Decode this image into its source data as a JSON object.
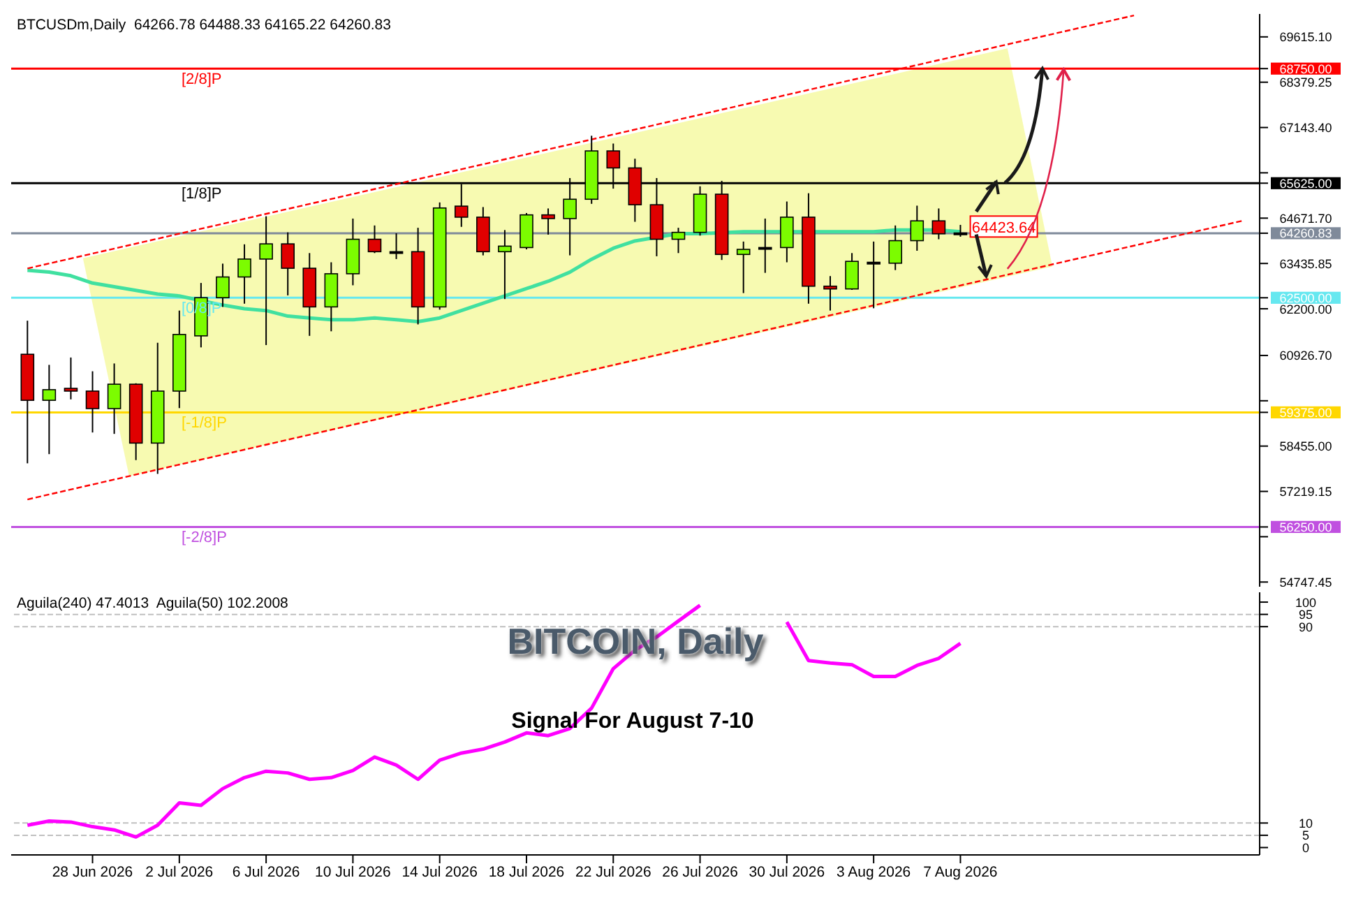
{
  "chart_data": [
    {
      "type": "candlestick",
      "title": "BTCUSDm,Daily  64266.78 64488.33 64165.22 64260.83",
      "x": [
        "2026-06-25",
        "2026-06-26",
        "2026-06-27",
        "2026-06-28",
        "2026-06-29",
        "2026-06-30",
        "2026-07-01",
        "2026-07-02",
        "2026-07-03",
        "2026-07-04",
        "2026-07-05",
        "2026-07-06",
        "2026-07-07",
        "2026-07-08",
        "2026-07-09",
        "2026-07-10",
        "2026-07-11",
        "2026-07-12",
        "2026-07-13",
        "2026-07-14",
        "2026-07-15",
        "2026-07-16",
        "2026-07-17",
        "2026-07-18",
        "2026-07-19",
        "2026-07-20",
        "2026-07-21",
        "2026-07-22",
        "2026-07-23",
        "2026-07-24",
        "2026-07-25",
        "2026-07-26",
        "2026-07-27",
        "2026-07-28",
        "2026-07-29",
        "2026-07-30",
        "2026-07-31",
        "2026-08-01",
        "2026-08-02",
        "2026-08-03",
        "2026-08-04",
        "2026-08-05",
        "2026-08-06",
        "2026-08-07"
      ],
      "ohlc": [
        [
          60959,
          61875,
          57985,
          59704
        ],
        [
          59704,
          60670,
          58236,
          59993
        ],
        [
          60030,
          60871,
          59729,
          59955
        ],
        [
          59955,
          60495,
          58826,
          59478
        ],
        [
          59478,
          60708,
          58788,
          60143
        ],
        [
          60143,
          60168,
          58073,
          58537
        ],
        [
          58537,
          61273,
          57697,
          59955
        ],
        [
          59955,
          62151,
          59491,
          61499
        ],
        [
          61461,
          62904,
          61147,
          62502
        ],
        [
          62502,
          63431,
          62251,
          63067
        ],
        [
          63067,
          63958,
          62339,
          63556
        ],
        [
          63556,
          64723,
          61210,
          63970
        ],
        [
          63970,
          64284,
          62565,
          63305
        ],
        [
          63305,
          63719,
          61461,
          62251
        ],
        [
          62251,
          63468,
          61586,
          63155
        ],
        [
          63155,
          64660,
          62841,
          64096
        ],
        [
          64096,
          64472,
          63719,
          63757
        ],
        [
          63757,
          64259,
          63556,
          63757
        ],
        [
          63757,
          64409,
          61774,
          62251
        ],
        [
          62251,
          65100,
          62176,
          64949
        ],
        [
          64999,
          65601,
          64434,
          64698
        ],
        [
          64698,
          64974,
          63657,
          63757
        ],
        [
          63757,
          64347,
          62465,
          63908
        ],
        [
          63870,
          64811,
          63820,
          64761
        ],
        [
          64761,
          64936,
          64222,
          64660
        ],
        [
          64660,
          65765,
          63657,
          65187
        ],
        [
          65187,
          66919,
          65062,
          66505
        ],
        [
          66505,
          66706,
          65476,
          66041
        ],
        [
          66041,
          66292,
          64572,
          65037
        ],
        [
          65037,
          65765,
          63632,
          64096
        ],
        [
          64096,
          64409,
          63719,
          64284
        ],
        [
          64284,
          65539,
          64196,
          65325
        ],
        [
          65325,
          65689,
          63531,
          63682
        ],
        [
          63682,
          64033,
          62628,
          63820
        ],
        [
          63870,
          64660,
          63180,
          63870
        ],
        [
          63870,
          65125,
          63468,
          64698
        ],
        [
          64698,
          65351,
          62339,
          62816
        ],
        [
          62816,
          63092,
          62151,
          62741
        ],
        [
          62741,
          63719,
          62716,
          63493
        ],
        [
          63468,
          64033,
          62214,
          63468
        ],
        [
          63443,
          64472,
          63255,
          64058
        ],
        [
          64058,
          65012,
          63782,
          64598
        ],
        [
          64598,
          64936,
          64096,
          64246
        ],
        [
          64266.78,
          64488.33,
          64165.22,
          64260.83
        ]
      ],
      "colors": [
        "#e00000",
        "#7cfc00",
        "#e00000",
        "#e00000",
        "#7cfc00",
        "#e00000",
        "#7cfc00",
        "#7cfc00",
        "#7cfc00",
        "#7cfc00",
        "#7cfc00",
        "#7cfc00",
        "#e00000",
        "#e00000",
        "#7cfc00",
        "#7cfc00",
        "#e00000",
        "#000000",
        "#e00000",
        "#7cfc00",
        "#e00000",
        "#e00000",
        "#7cfc00",
        "#7cfc00",
        "#e00000",
        "#7cfc00",
        "#7cfc00",
        "#e00000",
        "#e00000",
        "#e00000",
        "#7cfc00",
        "#7cfc00",
        "#e00000",
        "#7cfc00",
        "#000000",
        "#7cfc00",
        "#e00000",
        "#e00000",
        "#7cfc00",
        "#000000",
        "#7cfc00",
        "#7cfc00",
        "#e00000",
        "#000000"
      ],
      "series": [
        {
          "type": "line",
          "color": "#40e0a0",
          "values": [
            63250,
            63200,
            63100,
            62900,
            62800,
            62700,
            62600,
            62550,
            null,
            62300,
            62200,
            62150,
            62000,
            61950,
            61900,
            61900,
            61950,
            61900,
            61850,
            61950,
            62150,
            62350,
            62550,
            62750,
            62950,
            63200,
            63550,
            63850,
            64050,
            null,
            64250,
            64250,
            null,
            64300,
            64300,
            null,
            null,
            64300,
            64300,
            64300,
            64350,
            null,
            64350,
            64300
          ]
        },
        {
          "type": "line",
          "color": "#ff0000",
          "line_style": "dashed",
          "x": [
            "2026-06-25",
            "2026-08-15"
          ],
          "values": [
            63300,
            70200
          ]
        },
        {
          "type": "line",
          "color": "#ff0000",
          "line_style": "dashed",
          "x": [
            "2026-06-25",
            "2026-08-20"
          ],
          "values": [
            57000,
            64600
          ]
        }
      ],
      "xlim": [
        "2026-06-24T06:00",
        "2026-08-20T19:00"
      ],
      "ylim": [
        54620,
        70240
      ],
      "yticks": [
        {
          "value": 54747.45,
          "label": "54747.45"
        },
        {
          "value": 55983.3,
          "label": null
        },
        {
          "value": 57219.15,
          "label": "57219.15"
        },
        {
          "value": 58455,
          "label": "58455.00"
        },
        {
          "value": 59690.85,
          "label": null
        },
        {
          "value": 60926.7,
          "label": "60926.70"
        },
        {
          "value": 62200,
          "label": "62200.00"
        },
        {
          "value": 63435.85,
          "label": "63435.85"
        },
        {
          "value": 64671.7,
          "label": "64671.70"
        },
        {
          "value": 65907.55,
          "label": null
        },
        {
          "value": 67143.4,
          "label": "67143.40"
        },
        {
          "value": 68379.25,
          "label": "68379.25"
        },
        {
          "value": 69615.1,
          "label": "69615.10"
        },
        {
          "value": 68750,
          "label": "68750.00"
        },
        {
          "value": 65625,
          "label": "65625.00"
        },
        {
          "value": 64260.83,
          "label": "64260.83"
        },
        {
          "value": 62500,
          "label": "62500.00"
        },
        {
          "value": 59375,
          "label": "59375.00"
        },
        {
          "value": 56250,
          "label": "56250.00"
        }
      ],
      "tick_labels": "y",
      "ref_lines": [
        {
          "axis": "y",
          "value": 68750,
          "label": "[2/8]P",
          "color": "#ff0000"
        },
        {
          "axis": "y",
          "value": 65625,
          "label": "[1/8]P",
          "color": "#000000"
        },
        {
          "axis": "y",
          "value": 64260.83,
          "label": null,
          "color": "#7f8a9a"
        },
        {
          "axis": "y",
          "value": 62500,
          "label": "[0/8]P",
          "color": "#66e8f0"
        },
        {
          "axis": "y",
          "value": 59375,
          "label": "[-1/8]P",
          "color": "#ffd700"
        },
        {
          "axis": "y",
          "value": 56250,
          "label": "[-2/8]P",
          "color": "#c050e0"
        }
      ],
      "annotations": [
        {
          "text": "64423.64",
          "x": "2026-08-09",
          "y": 64423.64
        }
      ]
    },
    {
      "type": "line",
      "title": "Aguila(240) 47.4013  Aguila(50) 102.2008",
      "x": [
        "2026-06-25",
        "2026-06-26",
        "2026-06-27",
        "2026-06-28",
        "2026-06-29",
        "2026-06-30",
        "2026-07-01",
        "2026-07-02",
        "2026-07-03",
        "2026-07-04",
        "2026-07-05",
        "2026-07-06",
        "2026-07-07",
        "2026-07-08",
        "2026-07-09",
        "2026-07-10",
        "2026-07-11",
        "2026-07-12",
        "2026-07-13",
        "2026-07-14",
        "2026-07-15",
        "2026-07-16",
        "2026-07-17",
        "2026-07-18",
        "2026-07-19",
        "2026-07-20",
        "2026-07-21",
        "2026-07-22",
        "2026-07-23",
        "2026-07-24",
        "2026-07-25",
        "2026-07-26",
        "2026-07-27",
        "2026-07-28",
        "2026-07-29",
        "2026-07-30",
        "2026-07-31",
        "2026-08-01",
        "2026-08-02",
        "2026-08-03",
        "2026-08-04",
        "2026-08-05",
        "2026-08-06",
        "2026-08-07"
      ],
      "series": [
        {
          "color": "#ff00ff",
          "values": [
            9.1,
            10.8,
            10.4,
            8.5,
            7.2,
            4.3,
            9.1,
            18.2,
            17.2,
            24.0,
            28.5,
            31.1,
            30.4,
            27.8,
            28.5,
            31.4,
            36.9,
            33.6,
            27.8,
            35.6,
            38.5,
            40.1,
            43.0,
            46.7,
            45.6,
            48.5,
            56.8,
            72.9,
            80.4,
            85.8,
            92.3,
            98.7,
            null,
            null,
            null,
            91.9,
            76.2,
            75.2,
            74.5,
            69.7,
            69.7,
            74.2,
            77.1,
            83.2
          ]
        }
      ],
      "xlim": [
        "2026-06-24T06:00",
        "2026-08-20T19:00"
      ],
      "xticks": [
        {
          "value": "2026-06-28",
          "label": "28 Jun 2026"
        },
        {
          "value": "2026-07-02",
          "label": "2 Jul 2026"
        },
        {
          "value": "2026-07-06",
          "label": "6 Jul 2026"
        },
        {
          "value": "2026-07-10",
          "label": "10 Jul 2026"
        },
        {
          "value": "2026-07-14",
          "label": "14 Jul 2026"
        },
        {
          "value": "2026-07-18",
          "label": "18 Jul 2026"
        },
        {
          "value": "2026-07-22",
          "label": "22 Jul 2026"
        },
        {
          "value": "2026-07-26",
          "label": "26 Jul 2026"
        },
        {
          "value": "2026-07-30",
          "label": "30 Jul 2026"
        },
        {
          "value": "2026-08-03",
          "label": "3 Aug 2026"
        },
        {
          "value": "2026-08-07",
          "label": "7 Aug 2026"
        }
      ],
      "ylim": [
        -3,
        104
      ],
      "yticks": [
        0,
        5,
        10,
        90,
        95,
        100
      ],
      "ref_lines": [
        {
          "axis": "y",
          "value": 95,
          "color": "#c0c0c0",
          "line_style": "dashed"
        },
        {
          "axis": "y",
          "value": 90,
          "color": "#c0c0c0",
          "line_style": "dashed"
        },
        {
          "axis": "y",
          "value": 10,
          "color": "#c0c0c0",
          "line_style": "dashed"
        },
        {
          "axis": "y",
          "value": 5,
          "color": "#c0c0c0",
          "line_style": "dashed"
        }
      ],
      "annotations": [
        "BITCOIN, Daily",
        "Signal For August 7-10"
      ]
    }
  ]
}
